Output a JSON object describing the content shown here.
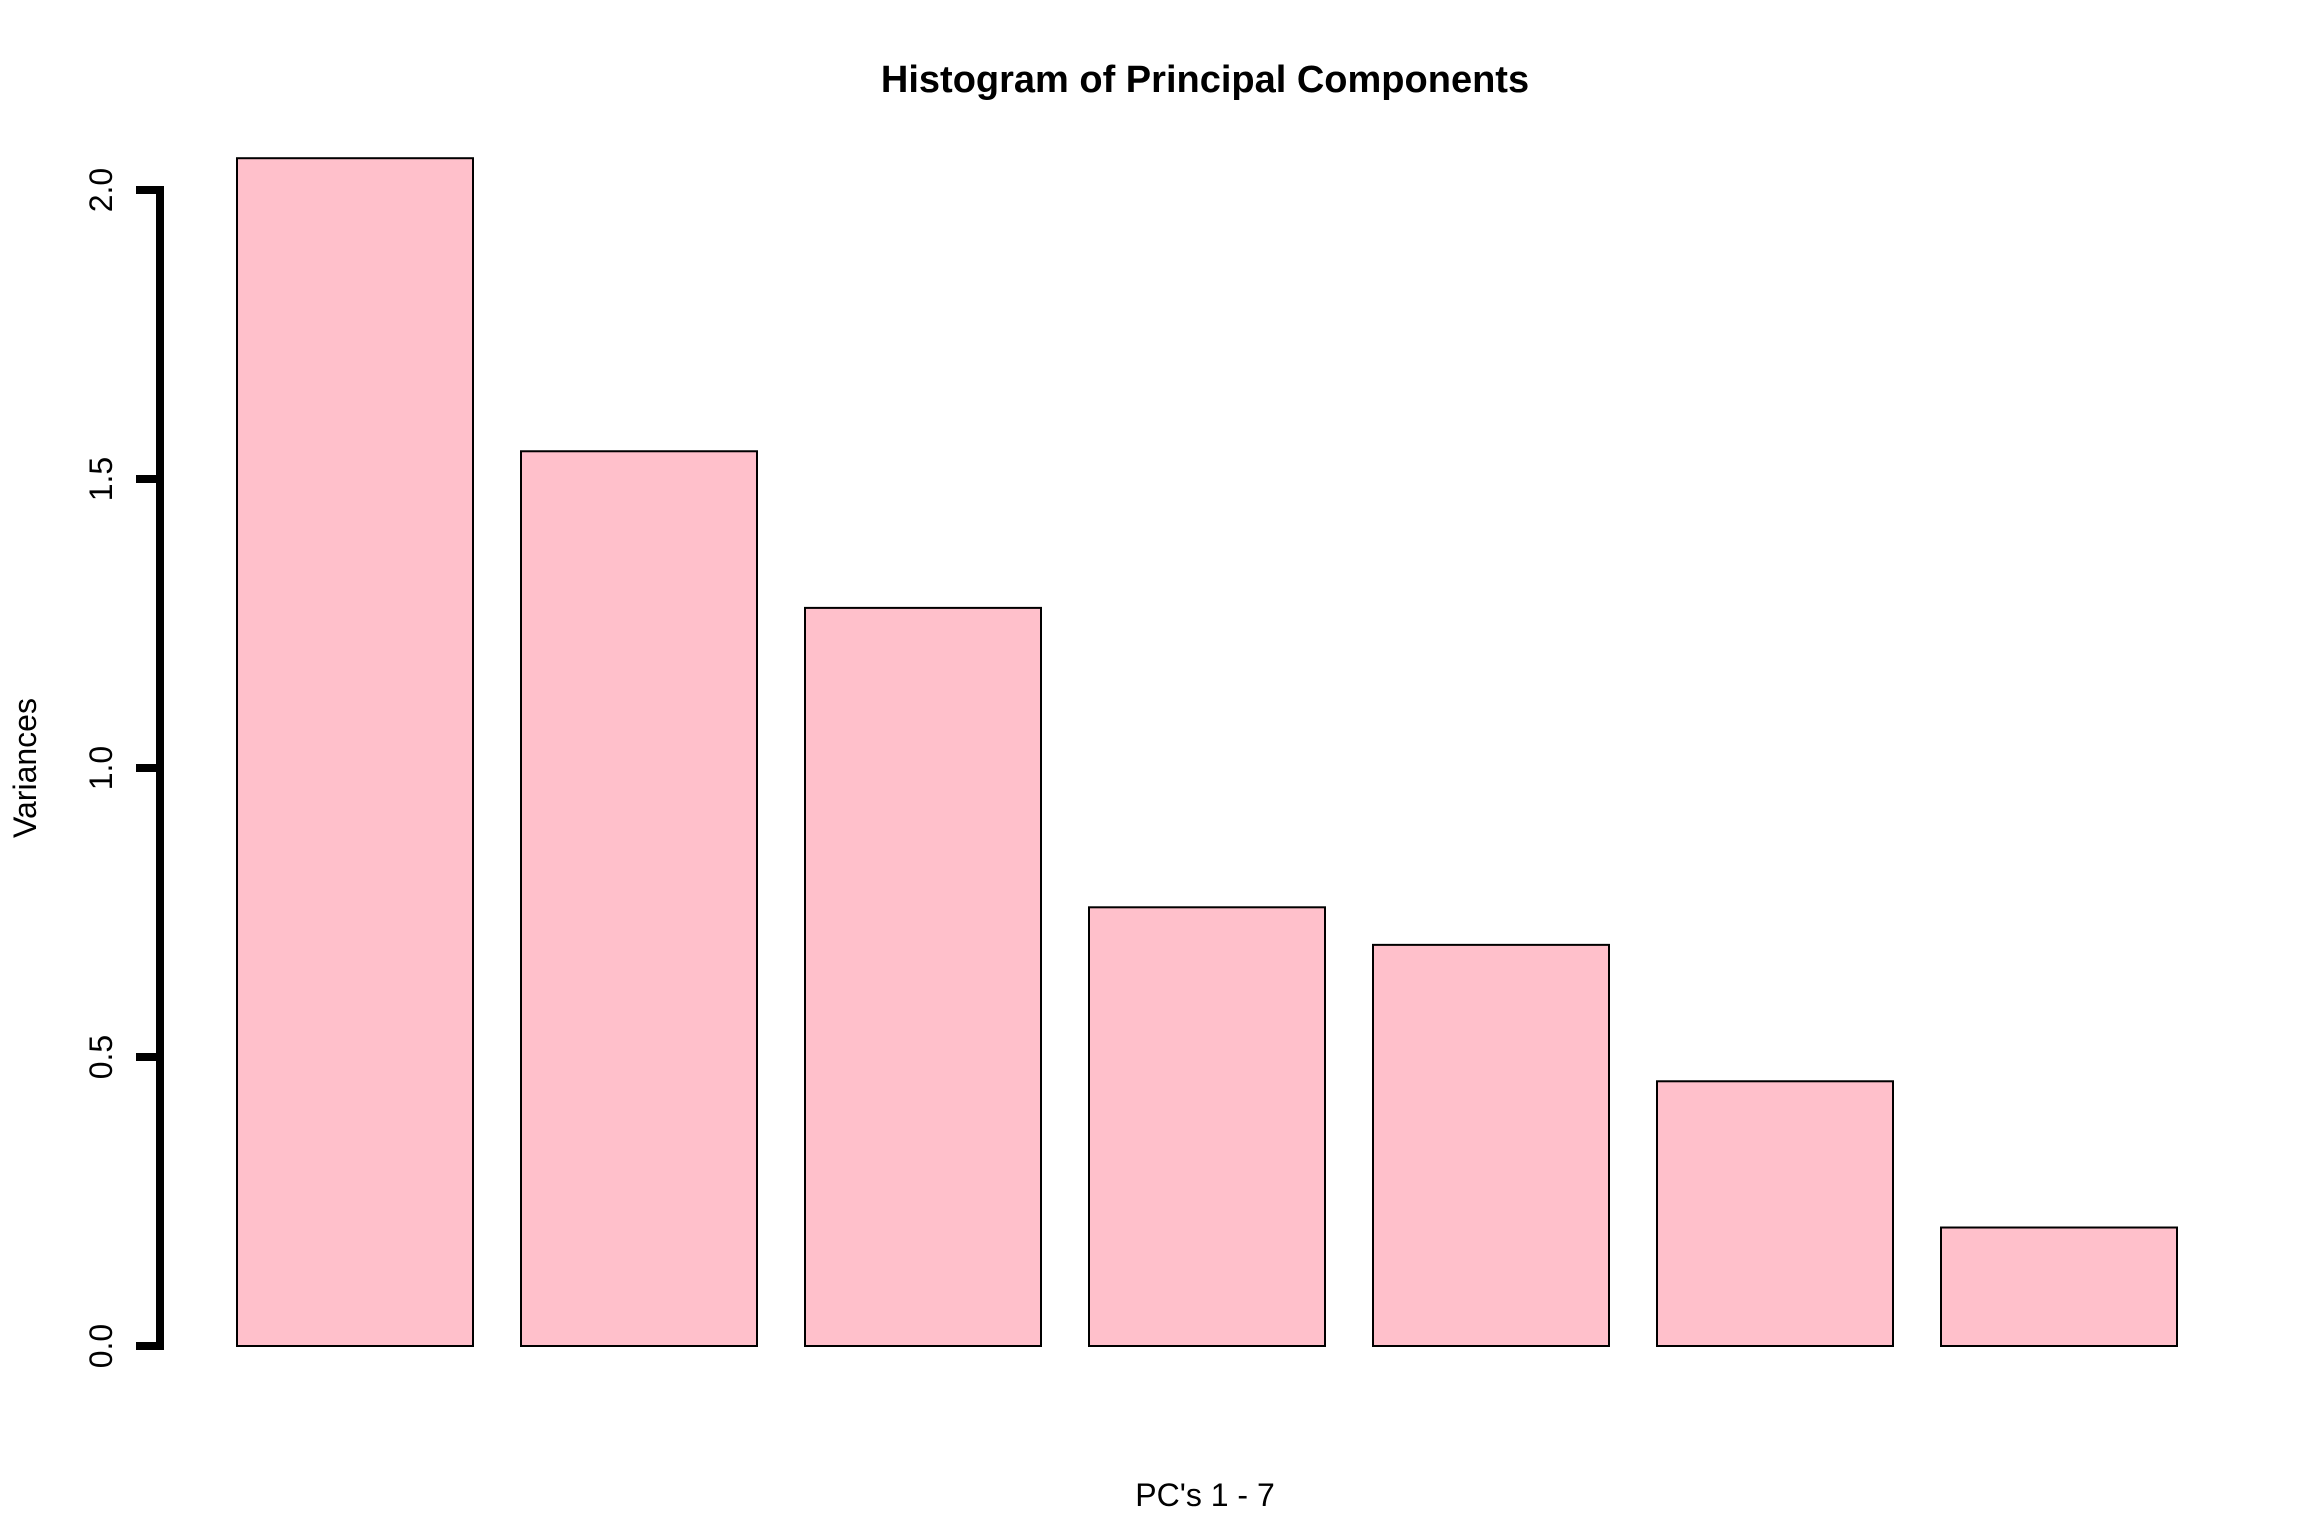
{
  "chart_data": {
    "type": "bar",
    "title": "Histogram of Principal Components",
    "xlabel": "PC's 1 - 7",
    "ylabel": "Variances",
    "categories": [
      "",
      "",
      "",
      "",
      "",
      "",
      ""
    ],
    "values": [
      2.055,
      1.548,
      1.277,
      0.759,
      0.694,
      0.458,
      0.205
    ],
    "ylim": [
      0,
      2.0
    ],
    "yticks": [
      0.0,
      0.5,
      1.0,
      1.5,
      2.0
    ],
    "ytick_labels": [
      "0.0",
      "0.5",
      "1.0",
      "1.5",
      "2.0"
    ],
    "grid": false,
    "legend": "none",
    "bar_color": "#FFC0CB",
    "bar_border_color": "#000000"
  }
}
